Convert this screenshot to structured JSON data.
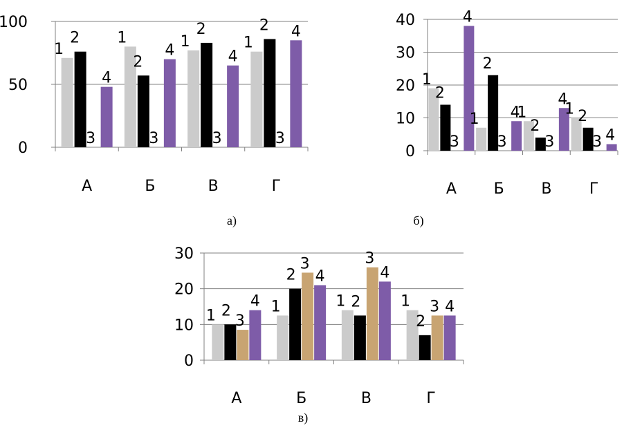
{
  "colors": {
    "series1": "#cbcbcb",
    "series2": "#000000",
    "series3": "#c8a472",
    "series4": "#7e5ca8",
    "grid": "#808080"
  },
  "chart_data": [
    {
      "type": "bar",
      "caption": "а)",
      "categories": [
        "А",
        "Б",
        "В",
        "Г"
      ],
      "series": [
        {
          "name": "1",
          "values": [
            71,
            80,
            77,
            76
          ]
        },
        {
          "name": "2",
          "values": [
            76,
            57,
            83,
            86
          ]
        },
        {
          "name": "3",
          "values": [
            0,
            0,
            0,
            0
          ]
        },
        {
          "name": "4",
          "values": [
            48,
            70,
            65,
            85
          ]
        }
      ],
      "ylim": [
        0,
        100
      ],
      "yticks": [
        0,
        50,
        100
      ],
      "grid": true
    },
    {
      "type": "bar",
      "caption": "б)",
      "categories": [
        "А",
        "Б",
        "В",
        "Г"
      ],
      "series": [
        {
          "name": "1",
          "values": [
            19,
            7,
            9,
            10
          ]
        },
        {
          "name": "2",
          "values": [
            14,
            23,
            4,
            7
          ]
        },
        {
          "name": "3",
          "values": [
            0,
            0,
            0,
            0
          ]
        },
        {
          "name": "4",
          "values": [
            38,
            9,
            13,
            2
          ]
        }
      ],
      "ylim": [
        0,
        40
      ],
      "yticks": [
        0,
        10,
        20,
        30,
        40
      ],
      "grid": true
    },
    {
      "type": "bar",
      "caption": "в)",
      "categories": [
        "А",
        "Б",
        "В",
        "Г"
      ],
      "series": [
        {
          "name": "1",
          "values": [
            10,
            12.5,
            14,
            14
          ]
        },
        {
          "name": "2",
          "values": [
            10,
            20,
            12.5,
            7
          ]
        },
        {
          "name": "3",
          "values": [
            8.5,
            24.5,
            26,
            12.5
          ]
        },
        {
          "name": "4",
          "values": [
            14,
            21,
            22,
            12.5
          ]
        }
      ],
      "ylim": [
        0,
        30
      ],
      "yticks": [
        0,
        10,
        20,
        30
      ],
      "grid": true
    }
  ]
}
